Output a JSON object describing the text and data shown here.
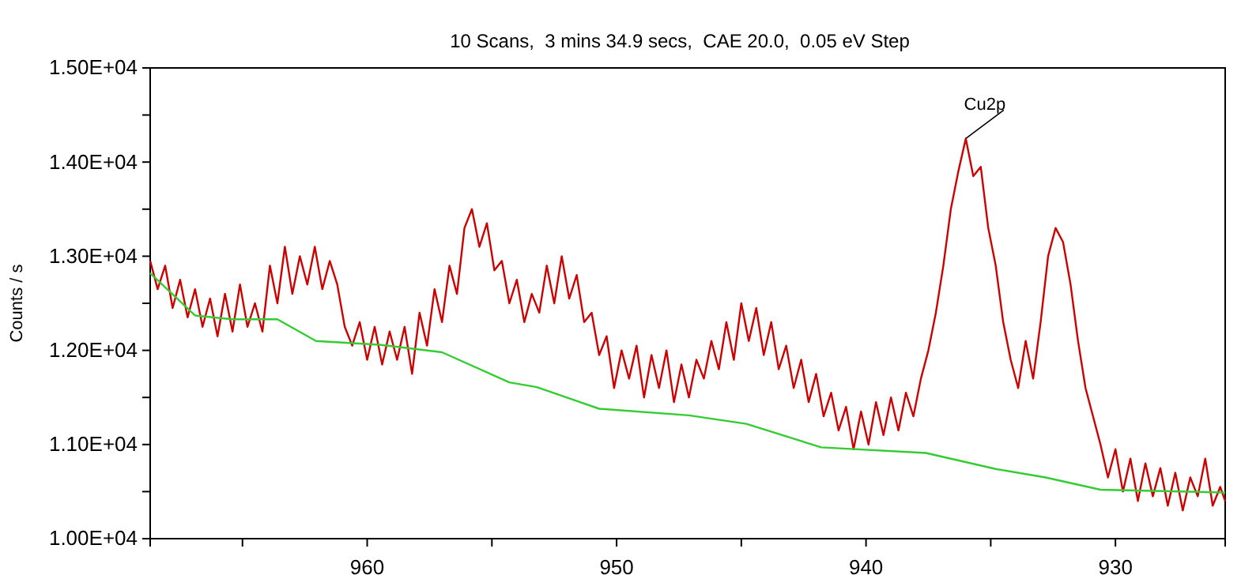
{
  "chart_data": {
    "type": "line",
    "title": "10 Scans,  3 mins 34.9 secs,  CAE 20.0,  0.05 eV Step",
    "ylabel": "Counts / s",
    "xlim": [
      968.7,
      925.6
    ],
    "xticks": [
      {
        "value": 965,
        "label": null
      },
      960,
      {
        "value": 955,
        "label": null
      },
      950,
      {
        "value": 945,
        "label": null
      },
      940,
      {
        "value": 935,
        "label": null
      },
      930
    ],
    "ylim": [
      10000,
      15000
    ],
    "yticks": [
      {
        "value": 10000,
        "label": "1.00E+04"
      },
      {
        "value": 10500,
        "label": null
      },
      {
        "value": 11000,
        "label": "1.10E+04"
      },
      {
        "value": 11500,
        "label": null
      },
      {
        "value": 12000,
        "label": "1.20E+04"
      },
      {
        "value": 12500,
        "label": null
      },
      {
        "value": 13000,
        "label": "1.30E+04"
      },
      {
        "value": 13500,
        "label": null
      },
      {
        "value": 14000,
        "label": "1.40E+04"
      },
      {
        "value": 14500,
        "label": null
      },
      {
        "value": 15000,
        "label": "1.50E+04"
      }
    ],
    "grid": false,
    "annotations": [
      {
        "text": "Cu2p",
        "x": 936.0,
        "y": 14250
      }
    ],
    "series": [
      {
        "color": "#cc0000",
        "x": [
          968.7,
          968.4,
          968.1,
          967.8,
          967.5,
          967.2,
          966.9,
          966.6,
          966.3,
          966.0,
          965.7,
          965.4,
          965.1,
          964.8,
          964.5,
          964.2,
          963.9,
          963.6,
          963.3,
          963.0,
          962.7,
          962.4,
          962.1,
          961.8,
          961.5,
          961.2,
          960.9,
          960.6,
          960.3,
          960.0,
          959.7,
          959.4,
          959.1,
          958.8,
          958.5,
          958.2,
          957.9,
          957.6,
          957.3,
          957.0,
          956.7,
          956.4,
          956.1,
          955.8,
          955.5,
          955.2,
          954.9,
          954.6,
          954.3,
          954.0,
          953.7,
          953.4,
          953.1,
          952.8,
          952.5,
          952.2,
          951.9,
          951.6,
          951.3,
          951.0,
          950.7,
          950.4,
          950.1,
          949.8,
          949.5,
          949.2,
          948.9,
          948.6,
          948.3,
          948.0,
          947.7,
          947.4,
          947.1,
          946.8,
          946.5,
          946.2,
          945.9,
          945.6,
          945.3,
          945.0,
          944.7,
          944.4,
          944.1,
          943.8,
          943.5,
          943.2,
          942.9,
          942.6,
          942.3,
          942.0,
          941.7,
          941.4,
          941.1,
          940.8,
          940.5,
          940.2,
          939.9,
          939.6,
          939.3,
          939.0,
          938.7,
          938.4,
          938.1,
          937.8,
          937.5,
          937.2,
          936.9,
          936.6,
          936.3,
          936.0,
          935.7,
          935.4,
          935.1,
          934.8,
          934.5,
          934.2,
          933.9,
          933.6,
          933.3,
          933.0,
          932.7,
          932.4,
          932.1,
          931.8,
          931.5,
          931.2,
          930.9,
          930.6,
          930.3,
          930.0,
          929.7,
          929.4,
          929.1,
          928.8,
          928.5,
          928.2,
          927.9,
          927.6,
          927.3,
          927.0,
          926.7,
          926.4,
          926.1,
          925.8,
          925.6
        ],
        "values": [
          12950,
          12650,
          12900,
          12450,
          12750,
          12350,
          12650,
          12250,
          12550,
          12150,
          12600,
          12200,
          12700,
          12250,
          12500,
          12200,
          12900,
          12500,
          13100,
          12600,
          13000,
          12700,
          13100,
          12650,
          12950,
          12700,
          12250,
          12050,
          12300,
          11900,
          12250,
          11850,
          12200,
          11900,
          12250,
          11750,
          12400,
          12050,
          12650,
          12300,
          12900,
          12600,
          13300,
          13500,
          13100,
          13350,
          12850,
          12950,
          12500,
          12750,
          12300,
          12600,
          12400,
          12900,
          12500,
          13000,
          12550,
          12800,
          12300,
          12400,
          11950,
          12150,
          11600,
          12000,
          11700,
          12050,
          11500,
          11950,
          11600,
          12000,
          11450,
          11850,
          11500,
          11900,
          11700,
          12100,
          11800,
          12300,
          11900,
          12500,
          12100,
          12450,
          11950,
          12300,
          11800,
          12050,
          11600,
          11900,
          11450,
          11750,
          11300,
          11550,
          11150,
          11400,
          10950,
          11350,
          11000,
          11450,
          11100,
          11500,
          11150,
          11550,
          11300,
          11700,
          12000,
          12400,
          12900,
          13500,
          13900,
          14250,
          13850,
          13950,
          13300,
          12900,
          12300,
          11900,
          11600,
          12100,
          11700,
          12300,
          13000,
          13300,
          13150,
          12700,
          12100,
          11600,
          11300,
          11000,
          10650,
          10950,
          10500,
          10850,
          10400,
          10800,
          10450,
          10750,
          10350,
          10700,
          10300,
          10650,
          10450,
          10850,
          10350,
          10550,
          10400
        ]
      },
      {
        "color": "#33cc33",
        "x": [
          968.7,
          966.9,
          965.4,
          963.6,
          962.05,
          959.5,
          957.0,
          954.3,
          953.2,
          950.7,
          947.1,
          944.8,
          941.8,
          937.6,
          934.8,
          932.8,
          930.6,
          925.6
        ],
        "values": [
          12820,
          12370,
          12330,
          12330,
          12100,
          12060,
          11980,
          11660,
          11610,
          11380,
          11310,
          11220,
          10970,
          10910,
          10740,
          10650,
          10520,
          10490
        ]
      }
    ]
  }
}
